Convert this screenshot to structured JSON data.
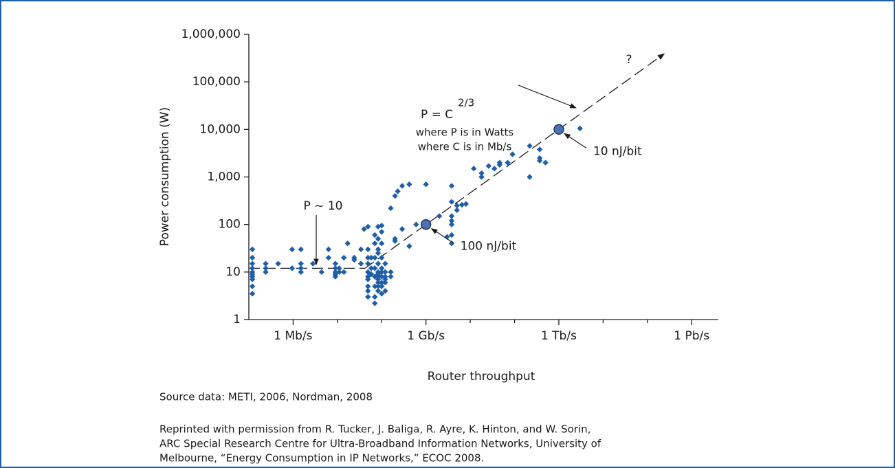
{
  "chart_data": {
    "type": "scatter",
    "x_label": "Router throughput",
    "y_label": "Power consumption (W)",
    "log_x": true,
    "log_y": true,
    "grid": false,
    "color": "#1f5fa8",
    "xlim": [
      100000,
      4000000000000000
    ],
    "xticks": [
      {
        "value": 1000000,
        "label": "1 Mb/s"
      },
      {
        "value": 1000000000,
        "label": "1 Gb/s"
      },
      {
        "value": 1000000000000,
        "label": "1 Tb/s"
      },
      {
        "value": 1000000000000000,
        "label": "1 Pb/s"
      }
    ],
    "xminor_ticks": [
      10000000,
      100000000,
      10000000000,
      100000000000,
      10000000000000,
      100000000000000
    ],
    "ylim": [
      1,
      1000000
    ],
    "yticks": [
      1,
      10,
      100,
      {
        "value": 1000,
        "label": "1,000"
      },
      {
        "value": 10000,
        "label": "10,000"
      },
      {
        "value": 100000,
        "label": "100,000"
      },
      {
        "value": 1000000,
        "label": "1,000,000"
      }
    ],
    "x": [
      120000,
      120000,
      120000,
      120000,
      120000,
      120000,
      120000,
      120000,
      120000,
      120000,
      240000,
      240000,
      240000,
      460000,
      950000,
      950000,
      1500000,
      1500000,
      1500000,
      1500000,
      2800000,
      4400000,
      6300000,
      6300000,
      9000000,
      9000000,
      9000000,
      9000000,
      9000000,
      11000000,
      11000000,
      14000000,
      14000000,
      17000000,
      24000000,
      24000000,
      34000000,
      34000000,
      40000000,
      49000000,
      49000000,
      49000000,
      49000000,
      49000000,
      49000000,
      49000000,
      49000000,
      49000000,
      49000000,
      58000000,
      58000000,
      58000000,
      70000000,
      70000000,
      70000000,
      70000000,
      70000000,
      70000000,
      70000000,
      70000000,
      83000000,
      83000000,
      83000000,
      83000000,
      83000000,
      83000000,
      83000000,
      83000000,
      83000000,
      83000000,
      83000000,
      83000000,
      100000000,
      100000000,
      100000000,
      100000000,
      100000000,
      100000000,
      100000000,
      100000000,
      100000000,
      100000000,
      120000000,
      120000000,
      120000000,
      120000000,
      120000000,
      120000000,
      160000000,
      160000000,
      160000000,
      200000000,
      200000000,
      200000000,
      230000000,
      290000000,
      290000000,
      420000000,
      420000000,
      600000000,
      1000000000,
      2000000000,
      3000000000,
      3800000000,
      3800000000,
      3800000000,
      3800000000,
      3800000000,
      3800000000,
      3800000000,
      5000000000,
      5000000000,
      6500000000,
      8000000000,
      12000000000,
      18000000000,
      18000000000,
      26000000000,
      35000000000,
      46000000000,
      46000000000,
      70000000000,
      90000000000,
      220000000000,
      220000000000,
      370000000000,
      370000000000,
      370000000000,
      500000000000,
      3000000000000
    ],
    "y": [
      30,
      20,
      15,
      12,
      10,
      9,
      8,
      7,
      5,
      3.5,
      15,
      12,
      10,
      15,
      30,
      12,
      30,
      15,
      12,
      10,
      15,
      10,
      30,
      20,
      15,
      12,
      10,
      9,
      8,
      12,
      10,
      20,
      10,
      40,
      20,
      18,
      30,
      15,
      80,
      90,
      30,
      20,
      15,
      10,
      8,
      7,
      5,
      4,
      3,
      20,
      12,
      9,
      3,
      2.2,
      5,
      8,
      12,
      20,
      40,
      60,
      90,
      50,
      30,
      25,
      15,
      10,
      9,
      8,
      7,
      6,
      5,
      4,
      95,
      70,
      40,
      20,
      12,
      10,
      8,
      6,
      5,
      3.5,
      15,
      10,
      8,
      7,
      6,
      4,
      220,
      10,
      8,
      400,
      50,
      45,
      500,
      650,
      80,
      700,
      35,
      100,
      700,
      150,
      55,
      650,
      300,
      150,
      120,
      100,
      60,
      40,
      250,
      200,
      260,
      270,
      1500,
      1200,
      1000,
      1700,
      1500,
      2000,
      1800,
      2000,
      3000,
      4500,
      1000,
      2500,
      2200,
      3800,
      2000,
      10500
    ],
    "trend_lines": [
      {
        "x": [
          100000,
          42000000
        ],
        "y": [
          12,
          12
        ]
      },
      {
        "x": [
          42000000,
          240000000000000
        ],
        "y": [
          12,
          390000
        ]
      }
    ],
    "highlights": [
      {
        "x": 1000000000,
        "y": 100,
        "label": "100 nJ/bit"
      },
      {
        "x": 1000000000000,
        "y": 10000,
        "label": "10 nJ/bit"
      }
    ],
    "annotations": {
      "flat": "P ~ 10",
      "formula": "P = C",
      "formula_sup": "2/3",
      "unit_p": "where P is in Watts",
      "unit_c": "where C is in Mb/s",
      "question": "?"
    },
    "source": "Source data: METI, 2006, Nordman, 2008",
    "credit": [
      "Reprinted with permission from R. Tucker, J. Baliga, R. Ayre, K. Hinton, and W. Sorin,",
      "ARC Special Research Centre for Ultra-Broadband Information Networks, University of",
      "Melbourne, “Energy Consumption in IP Networks,” ECOC 2008."
    ]
  }
}
